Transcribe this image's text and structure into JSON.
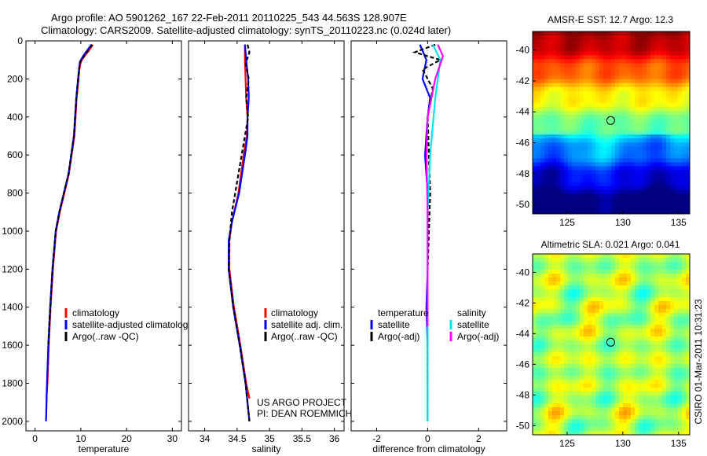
{
  "header": {
    "title_line1": "Argo profile: AO 5901262_167 22-Feb-2011 20110225_543 44.563S 128.907E",
    "title_line2": "Climatology: CARS2009. Satellite-adjusted climatology: synTS_20110223.nc (0.024d later)"
  },
  "side_credit": "CSIRO 01-Mar-2011 10:31:23",
  "colors": {
    "red": "#ff0000",
    "blue": "#0000ff",
    "black": "#000000",
    "cyan": "#00e5ee",
    "magenta": "#ff00ff"
  },
  "chart_data": [
    {
      "id": "temperature",
      "type": "line",
      "xlabel": "temperature",
      "xlim": [
        -2,
        32
      ],
      "ylim": [
        0,
        2050
      ],
      "y_reversed": true,
      "xticks": [
        0,
        10,
        20,
        30
      ],
      "yticks": [
        0,
        200,
        400,
        600,
        800,
        1000,
        1200,
        1400,
        1600,
        1800,
        2000
      ],
      "legend": [
        "climatology",
        "satellite-adjusted climatology",
        "Argo(..raw -QC)"
      ],
      "series": [
        {
          "name": "climatology",
          "color": "red",
          "dash": "",
          "x": [
            12.6,
            11.8,
            10.8,
            10.0,
            9.7,
            9.5,
            9.1,
            8.6,
            7.4,
            6.4,
            5.4,
            4.6,
            3.9,
            3.4,
            3.0,
            2.7,
            2.5
          ],
          "y": [
            20,
            50,
            80,
            110,
            150,
            200,
            300,
            500,
            700,
            800,
            900,
            1000,
            1200,
            1400,
            1600,
            1800,
            1880
          ]
        },
        {
          "name": "satellite-adjusted climatology",
          "color": "blue",
          "dash": "",
          "x": [
            12.3,
            11.4,
            10.5,
            9.8,
            9.6,
            9.4,
            9.0,
            8.5,
            7.3,
            6.3,
            5.3,
            4.5,
            3.8,
            3.3,
            2.9,
            2.6,
            2.4
          ],
          "y": [
            20,
            50,
            80,
            110,
            150,
            200,
            300,
            500,
            700,
            800,
            900,
            1000,
            1200,
            1400,
            1600,
            1800,
            2000
          ]
        },
        {
          "name": "Argo(..raw -QC)",
          "color": "black",
          "dash": "5,3",
          "x": [
            12.5,
            11.6,
            10.7,
            9.9,
            9.6,
            9.4,
            9.0,
            8.5,
            7.3,
            6.3,
            5.3,
            4.5,
            3.8,
            3.3,
            2.9
          ],
          "y": [
            20,
            50,
            80,
            110,
            150,
            200,
            300,
            500,
            700,
            800,
            900,
            1000,
            1200,
            1400,
            1600
          ]
        }
      ]
    },
    {
      "id": "salinity",
      "type": "line",
      "xlabel": "salinity",
      "xlim": [
        33.75,
        36.15
      ],
      "ylim": [
        0,
        2050
      ],
      "y_reversed": true,
      "xticks": [
        34,
        34.5,
        35,
        35.5,
        36
      ],
      "yticks": [
        0,
        200,
        400,
        600,
        800,
        1000,
        1200,
        1400,
        1600,
        1800,
        2000
      ],
      "legend": [
        "climatology",
        "satellite adj. clim.",
        "Argo(..raw -QC)"
      ],
      "annotation": [
        "US ARGO PROJECT",
        "PI: DEAN ROEMMICH"
      ],
      "series": [
        {
          "name": "climatology",
          "color": "red",
          "dash": "",
          "x": [
            34.62,
            34.62,
            34.63,
            34.64,
            34.66,
            34.65,
            34.6,
            34.52,
            34.42,
            34.38,
            34.38,
            34.45,
            34.55,
            34.64,
            34.69
          ],
          "y": [
            20,
            100,
            200,
            300,
            400,
            500,
            600,
            800,
            950,
            1050,
            1200,
            1400,
            1600,
            1800,
            1880
          ]
        },
        {
          "name": "satellite adj. clim.",
          "color": "blue",
          "dash": "",
          "x": [
            34.62,
            34.64,
            34.67,
            34.68,
            34.66,
            34.66,
            34.62,
            34.53,
            34.42,
            34.37,
            34.37,
            34.44,
            34.54,
            34.63,
            34.69
          ],
          "y": [
            20,
            100,
            200,
            300,
            400,
            500,
            600,
            800,
            950,
            1050,
            1200,
            1400,
            1600,
            1800,
            2000
          ]
        },
        {
          "name": "Argo(..raw -QC)",
          "color": "black",
          "dash": "5,3",
          "x": [
            34.66,
            34.69,
            34.63,
            34.68,
            34.64,
            34.67,
            34.62,
            34.52,
            34.42,
            34.38,
            34.37,
            34.44,
            34.54,
            34.63,
            34.69
          ],
          "y": [
            20,
            60,
            120,
            200,
            300,
            400,
            500,
            700,
            900,
            1050,
            1200,
            1400,
            1600,
            1800,
            2000
          ]
        }
      ]
    },
    {
      "id": "difference",
      "type": "line",
      "xlabel": "difference from climatology",
      "xlim": [
        -3,
        3.1
      ],
      "ylim": [
        0,
        2050
      ],
      "y_reversed": true,
      "xticks": [
        -2,
        0,
        2
      ],
      "yticks": [
        0,
        200,
        400,
        600,
        800,
        1000,
        1200,
        1400,
        1600,
        1800,
        2000
      ],
      "legend_title_left": "temperature",
      "legend_title_right": "salinity",
      "legend_left": [
        "satellite",
        "Argo(-adj)"
      ],
      "legend_right": [
        "satellite",
        "Argo(-adj)"
      ],
      "series": [
        {
          "name": "temperature satellite",
          "color": "blue",
          "dash": "",
          "x": [
            -0.3,
            -0.05,
            -0.2,
            0.1,
            0.0,
            -0.1,
            0.0,
            0.0,
            0.0,
            -0.05,
            0.0,
            0.0,
            0.0
          ],
          "y": [
            20,
            100,
            200,
            300,
            400,
            600,
            800,
            1000,
            1200,
            1400,
            1600,
            1800,
            2000
          ]
        },
        {
          "name": "temperature Argo(-adj)",
          "color": "black",
          "dash": "5,3",
          "x": [
            0.3,
            -0.5,
            0.5,
            -0.2,
            0.2,
            0.0,
            0.05,
            0.1,
            0.05,
            0.0,
            0.0,
            0.0,
            0.0
          ],
          "y": [
            20,
            60,
            100,
            150,
            250,
            400,
            600,
            800,
            1000,
            1200,
            1400,
            1600,
            1800
          ]
        },
        {
          "name": "salinity satellite",
          "color": "cyan",
          "dash": "",
          "x": [
            0.2,
            0.5,
            0.3,
            0.1,
            0.0,
            0.0,
            0.0,
            0.0
          ],
          "y": [
            20,
            100,
            300,
            600,
            900,
            1200,
            1600,
            2000
          ]
        },
        {
          "name": "salinity Argo(-adj)",
          "color": "magenta",
          "dash": "",
          "x": [
            0.4,
            0.6,
            0.3,
            0.0,
            -0.05,
            0.0,
            0.0,
            0.0
          ],
          "y": [
            20,
            80,
            200,
            400,
            600,
            900,
            1200,
            1500
          ]
        }
      ]
    },
    {
      "id": "sst_map",
      "type": "heatmap",
      "title": "AMSR-E SST: 12.7  Argo: 12.3",
      "xticks": [
        125,
        130,
        135
      ],
      "yticks": [
        -40,
        -42,
        -44,
        -46,
        -48,
        -50
      ],
      "xlim": [
        121.9,
        136
      ],
      "ylim": [
        -50.6,
        -38.8
      ],
      "argo_position": {
        "lon": 128.907,
        "lat": -44.563
      }
    },
    {
      "id": "sla_map",
      "type": "heatmap",
      "title": "Altimetric SLA: 0.021  Argo: 0.041",
      "xticks": [
        125,
        130,
        135
      ],
      "yticks": [
        -40,
        -42,
        -44,
        -46,
        -48,
        -50
      ],
      "xlim": [
        121.9,
        136
      ],
      "ylim": [
        -50.6,
        -38.8
      ],
      "argo_position": {
        "lon": 128.907,
        "lat": -44.563
      }
    }
  ]
}
